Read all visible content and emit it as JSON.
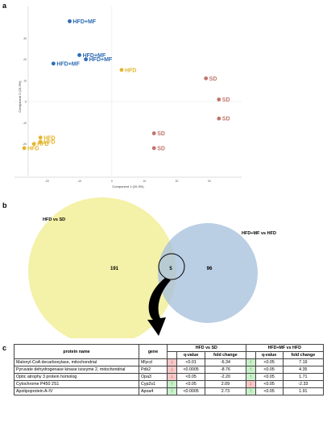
{
  "panel_labels": {
    "a": "a",
    "b": "b",
    "c": "c"
  },
  "chart_data": {
    "type": "scatter",
    "xlabel": "Component 1 (20.3%)",
    "ylabel": "Component 2 (15.0%)",
    "xlim": [
      -30,
      40
    ],
    "ylim": [
      -35,
      45
    ],
    "xticks": [
      -20,
      -10,
      0,
      10,
      20,
      30
    ],
    "yticks": [
      -20,
      -10,
      0,
      10,
      20,
      30
    ],
    "grid": false,
    "series": [
      {
        "name": "HFD+MF",
        "color": "#2e6db4",
        "x": [
          -13,
          -10,
          -8,
          -18
        ],
        "y": [
          38,
          22,
          20,
          18
        ],
        "labels": [
          "HFD+MF",
          "HFD+MF",
          "HFD+MF",
          "HFD+MF"
        ]
      },
      {
        "name": "HFD",
        "color": "#e3b52d",
        "x": [
          3,
          -22,
          -22,
          -24,
          -27
        ],
        "y": [
          15,
          -17,
          -19,
          -20,
          -22
        ],
        "labels": [
          "HFD",
          "HFD",
          "HFD",
          "HFD",
          "HFD"
        ]
      },
      {
        "name": "SD",
        "color": "#c0756a",
        "x": [
          29,
          33,
          33,
          13,
          13
        ],
        "y": [
          11,
          1,
          -8,
          -15,
          -22
        ],
        "labels": [
          "SD",
          "SD",
          "SD",
          "SD",
          "SD"
        ]
      }
    ]
  },
  "venn": {
    "left_label": "HFD vs SD",
    "right_label": "HFD+MF vs HFD",
    "left_count": "191",
    "overlap_count": "5",
    "right_count": "96",
    "left_color": "#f3ef9e",
    "right_color": "#a9c2dd"
  },
  "table": {
    "headers": {
      "protein": "protein name",
      "gene": "gene",
      "group1": "HFD vs SD",
      "group2": "HFD+MF vs HFD",
      "qvalue": "q-value",
      "fold": "fold change"
    },
    "rows": [
      {
        "protein": "Malonyl-CoA decarboxylase, mitochondrial",
        "gene": "Mlycd",
        "dir1": "down",
        "q1": "<0.01",
        "fc1": "-6.34",
        "dir2": "up",
        "q2": "<0.05",
        "fc2": "7.19"
      },
      {
        "protein": "Pyruvate dehydrogenase kinase isozyme 2, mitochondrial",
        "gene": "Pdk2",
        "dir1": "down",
        "q1": "<0.0005",
        "fc1": "-8.76",
        "dir2": "up",
        "q2": "<0.05",
        "fc2": "4.35"
      },
      {
        "protein": "Optic atrophy 3 protein homolog",
        "gene": "Opa3",
        "dir1": "down",
        "q1": "<0.05",
        "fc1": "-2.20",
        "dir2": "up",
        "q2": "<0.05",
        "fc2": "1.71"
      },
      {
        "protein": "Cytochrome P450 2S1",
        "gene": "Cyp2s1",
        "dir1": "up",
        "q1": "<0.05",
        "fc1": "2.09",
        "dir2": "down",
        "q2": "<0.05",
        "fc2": "-2.33"
      },
      {
        "protein": "Apolipoprotein A-IV",
        "gene": "Apoa4",
        "dir1": "up",
        "q1": "<0.0005",
        "fc1": "2.73",
        "dir2": "up",
        "q2": "<0.05",
        "fc2": "1.91"
      }
    ]
  }
}
